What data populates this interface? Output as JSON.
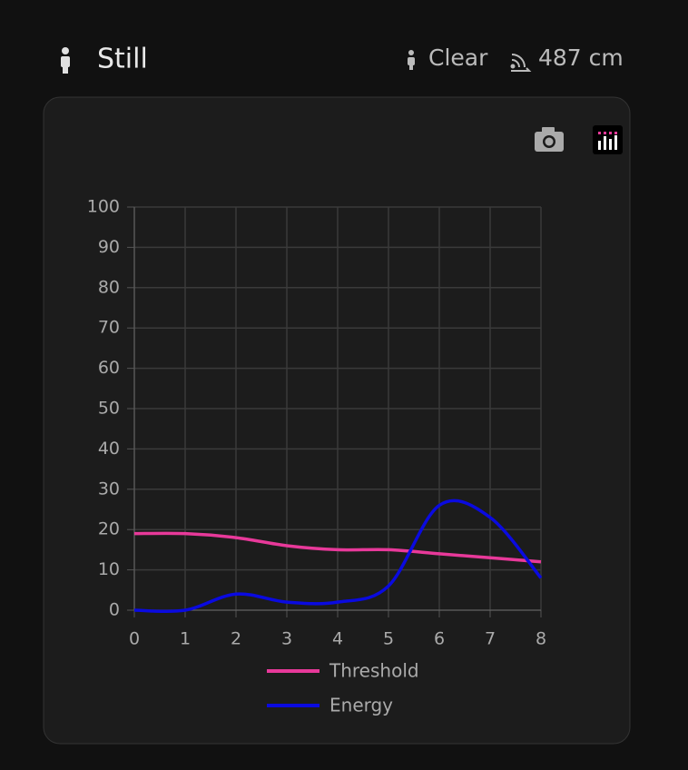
{
  "header": {
    "status": "Still",
    "presence": "Clear",
    "distance": "487 cm"
  },
  "chart_data": {
    "type": "line",
    "x": [
      0,
      1,
      2,
      3,
      4,
      5,
      6,
      7,
      8
    ],
    "xlim": [
      0,
      8
    ],
    "xticks": [
      0,
      1,
      2,
      3,
      4,
      5,
      6,
      7,
      8
    ],
    "ylim": [
      0,
      100
    ],
    "yticks": [
      0,
      10,
      20,
      30,
      40,
      50,
      60,
      70,
      80,
      90,
      100
    ],
    "grid": true,
    "series": [
      {
        "name": "Threshold",
        "color": "#e8399a",
        "values": [
          19,
          19,
          18,
          16,
          15,
          15,
          14,
          13,
          12
        ]
      },
      {
        "name": "Energy",
        "color": "#0a0ae0",
        "values": [
          0,
          0,
          4,
          2,
          2,
          6,
          26,
          23,
          8
        ]
      }
    ]
  }
}
